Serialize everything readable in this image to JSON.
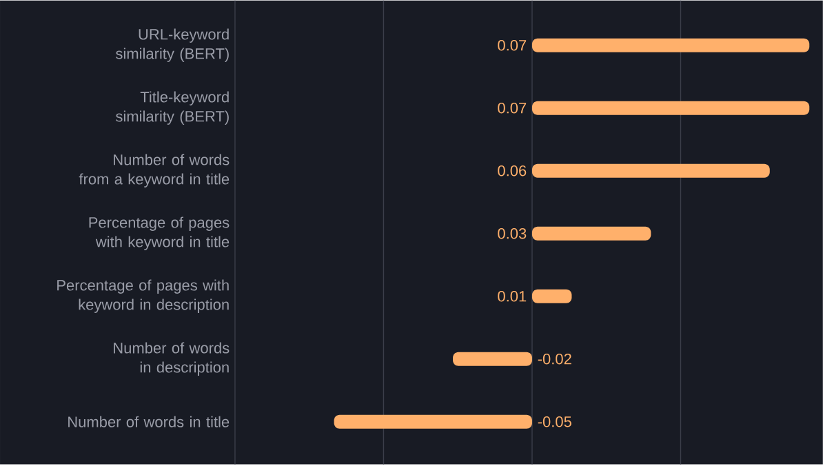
{
  "chart_data": {
    "type": "bar",
    "orientation": "horizontal",
    "categories": [
      "URL-keyword similarity (BERT)",
      "Title-keyword similarity (BERT)",
      "Number of words from a keyword in title",
      "Percentage of pages with keyword in title",
      "Percentage of pages with keyword in description",
      "Number of words in description",
      "Number of words in title"
    ],
    "values": [
      0.07,
      0.07,
      0.06,
      0.03,
      0.01,
      -0.02,
      -0.05
    ],
    "color": "#ffb06b",
    "data_labels": true,
    "grid": "x",
    "tick_labels": "y",
    "xlim": [
      -0.075,
      0.0734
    ],
    "xticks": [
      {
        "value": -0.075,
        "label": null
      },
      {
        "value": -0.0375,
        "label": null
      },
      {
        "value": 0,
        "label": null
      },
      {
        "value": 0.0375,
        "label": null
      }
    ]
  }
}
